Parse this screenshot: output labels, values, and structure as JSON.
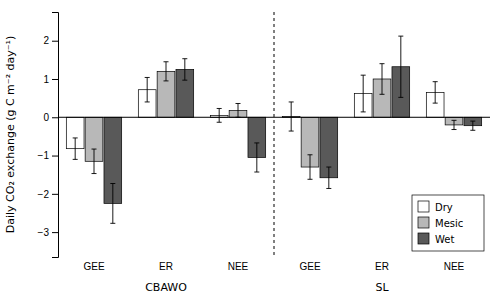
{
  "chart_data": {
    "type": "bar",
    "ylabel": "Daily CO₂ exchange (g C m⁻² day⁻¹)",
    "categories": [
      "GEE",
      "ER",
      "NEE",
      "GEE",
      "ER",
      "NEE"
    ],
    "annotations": [
      "CBAWO",
      "SL"
    ],
    "series": [
      {
        "name": "Dry",
        "color": "#ffffff",
        "values": [
          -0.82,
          0.72,
          0.05,
          0.02,
          0.62,
          0.65
        ],
        "errors": [
          0.28,
          0.32,
          0.18,
          0.38,
          0.48,
          0.28
        ]
      },
      {
        "name": "Mesic",
        "color": "#b8b8b8",
        "values": [
          -1.15,
          1.2,
          0.18,
          -1.3,
          1.0,
          -0.2
        ],
        "errors": [
          0.32,
          0.25,
          0.18,
          0.32,
          0.4,
          0.12
        ]
      },
      {
        "name": "Wet",
        "color": "#595959",
        "values": [
          -2.25,
          1.25,
          -1.05,
          -1.58,
          1.32,
          -0.22
        ],
        "errors": [
          0.52,
          0.28,
          0.38,
          0.28,
          0.8,
          0.12
        ]
      }
    ],
    "ylim": [
      -3.65,
      2.75
    ],
    "yticks": [
      -3.0,
      -2.0,
      -1.0,
      0.0,
      1.0,
      2.0
    ],
    "grid": false,
    "legend": "lower right"
  }
}
